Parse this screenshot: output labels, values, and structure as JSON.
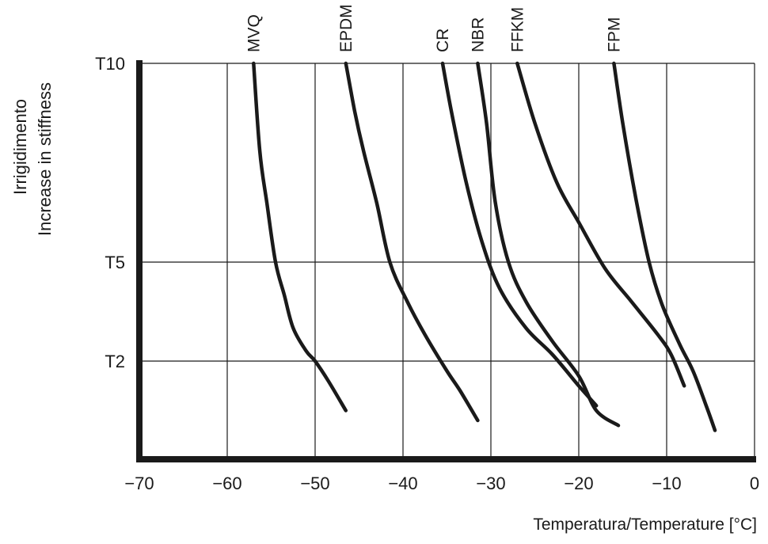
{
  "chart_data": {
    "type": "line",
    "title": "",
    "ylabel_lines": [
      "Irrigidimento",
      "Increase in stiffness"
    ],
    "xlabel": "Temperatura/Temperature [°C]",
    "xlim": [
      -70,
      0
    ],
    "x_ticks": [
      -70,
      -60,
      -50,
      -40,
      -30,
      -20,
      -10,
      0
    ],
    "x_tick_labels": [
      "−70",
      "−60",
      "−50",
      "−40",
      "−30",
      "−20",
      "−10",
      "0"
    ],
    "y_ticks": [
      2,
      5,
      10
    ],
    "y_tick_labels": [
      "T2",
      "T5",
      "T10"
    ],
    "grid": true,
    "series": [
      {
        "name": "MVQ",
        "points": [
          [
            -57.0,
            10.0
          ],
          [
            -56.3,
            7.8
          ],
          [
            -55.5,
            6.5
          ],
          [
            -54.5,
            5.0
          ],
          [
            -53.5,
            4.0
          ],
          [
            -52.5,
            3.0
          ],
          [
            -51.0,
            2.3
          ],
          [
            -50.0,
            2.0
          ],
          [
            -48.5,
            1.6
          ],
          [
            -46.5,
            1.0
          ]
        ]
      },
      {
        "name": "EPDM",
        "points": [
          [
            -46.5,
            10.0
          ],
          [
            -45.5,
            8.8
          ],
          [
            -44.5,
            7.8
          ],
          [
            -43.0,
            6.5
          ],
          [
            -41.5,
            5.0
          ],
          [
            -39.5,
            3.8
          ],
          [
            -37.5,
            2.8
          ],
          [
            -35.0,
            1.8
          ],
          [
            -33.5,
            1.4
          ],
          [
            -31.5,
            0.8
          ]
        ]
      },
      {
        "name": "CR",
        "points": [
          [
            -35.5,
            10.0
          ],
          [
            -34.5,
            8.8
          ],
          [
            -32.8,
            7.0
          ],
          [
            -31.0,
            5.5
          ],
          [
            -29.0,
            4.2
          ],
          [
            -26.0,
            3.0
          ],
          [
            -23.0,
            2.2
          ],
          [
            -20.0,
            1.5
          ],
          [
            -18.0,
            1.1
          ]
        ]
      },
      {
        "name": "NBR",
        "points": [
          [
            -31.5,
            10.0
          ],
          [
            -30.5,
            8.5
          ],
          [
            -29.5,
            6.5
          ],
          [
            -28.0,
            5.0
          ],
          [
            -26.0,
            3.8
          ],
          [
            -23.0,
            2.6
          ],
          [
            -20.0,
            1.7
          ],
          [
            -18.0,
            1.0
          ],
          [
            -15.5,
            0.7
          ]
        ]
      },
      {
        "name": "FFKM",
        "points": [
          [
            -27.0,
            10.0
          ],
          [
            -25.0,
            8.5
          ],
          [
            -22.5,
            7.0
          ],
          [
            -20.0,
            6.0
          ],
          [
            -17.0,
            4.8
          ],
          [
            -14.0,
            3.8
          ],
          [
            -11.0,
            2.8
          ],
          [
            -9.5,
            2.2
          ],
          [
            -8.0,
            1.5
          ]
        ]
      },
      {
        "name": "FPM",
        "points": [
          [
            -16.0,
            10.0
          ],
          [
            -15.0,
            8.5
          ],
          [
            -13.5,
            6.6
          ],
          [
            -12.0,
            5.0
          ],
          [
            -10.5,
            3.7
          ],
          [
            -8.5,
            2.5
          ],
          [
            -7.0,
            1.8
          ],
          [
            -5.5,
            1.1
          ],
          [
            -4.5,
            0.6
          ]
        ]
      }
    ]
  }
}
